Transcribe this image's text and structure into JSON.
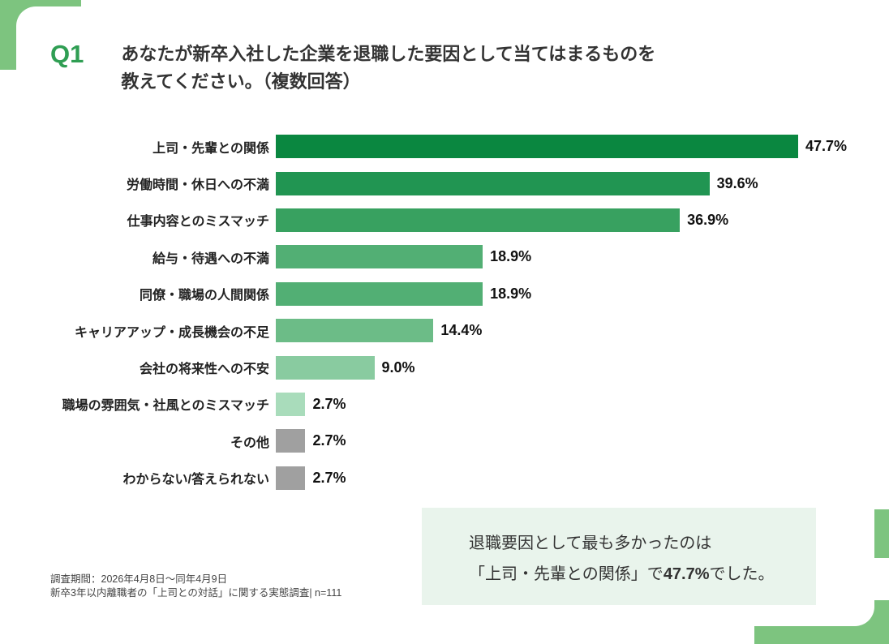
{
  "colors": {
    "accent": "#7dc47f",
    "callout_bg": "#e9f4ec",
    "q_green": "#2f9e53",
    "text": "#333333"
  },
  "header": {
    "q_label": "Q1",
    "title_line1": "あなたが新卒入社した企業を退職した要因として当てはまるものを",
    "title_line2": "教えてください。（複数回答）"
  },
  "chart_data": {
    "type": "bar",
    "orientation": "horizontal",
    "title": "あなたが新卒入社した企業を退職した要因として当てはまるものを教えてください。（複数回答）",
    "categories": [
      "上司・先輩との関係",
      "労働時間・休日への不満",
      "仕事内容とのミスマッチ",
      "給与・待遇への不満",
      "同僚・職場の人間関係",
      "キャリアアップ・成長機会の不足",
      "会社の将来性への不安",
      "職場の雰囲気・社風とのミスマッチ",
      "その他",
      "わからない/答えられない"
    ],
    "values": [
      47.7,
      39.6,
      36.9,
      18.9,
      18.9,
      14.4,
      9.0,
      2.7,
      2.7,
      2.7
    ],
    "value_labels": [
      "47.7%",
      "39.6%",
      "36.9%",
      "18.9%",
      "18.9%",
      "14.4%",
      "9.0%",
      "2.7%",
      "2.7%",
      "2.7%"
    ],
    "bar_colors": [
      "#0a8740",
      "#219552",
      "#38a160",
      "#52af74",
      "#52af74",
      "#6cbc87",
      "#89cba0",
      "#a9dcbb",
      "#a0a0a0",
      "#a0a0a0"
    ],
    "xlim": [
      0,
      50
    ],
    "grid": false,
    "legend": "none"
  },
  "footnote": {
    "line1": "調査期間：2026年4月8日～同年4月9日",
    "line2": "新卒3年以内離職者の「上司との対話」に関する実態調査| n=111"
  },
  "callout": {
    "line1": "退職要因として最も多かったのは",
    "line2_prefix": "「上司・先輩との関係」で",
    "line2_bold": "47.7%",
    "line2_suffix": "でした。"
  }
}
